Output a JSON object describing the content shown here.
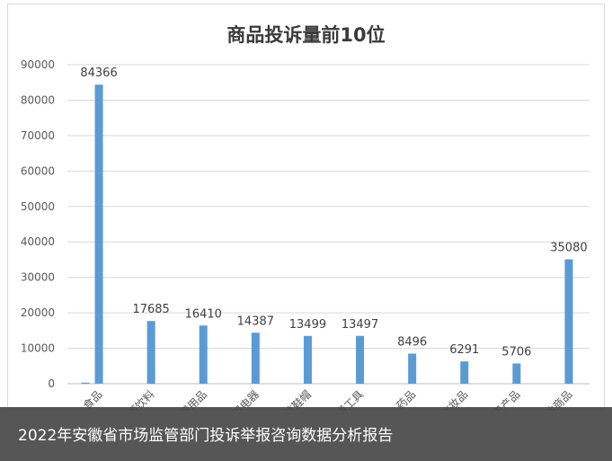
{
  "chart_data": {
    "type": "bar",
    "title": "商品投诉量前10位",
    "categories": [
      "食品",
      "烟酒饮料",
      "家居用品",
      "家用电器",
      "服装鞋帽",
      "交通工具",
      "药品",
      "化妆品",
      "通讯产品",
      "其他商品"
    ],
    "values": [
      84366,
      17685,
      16410,
      14387,
      13499,
      13497,
      8496,
      6291,
      5706,
      35080
    ],
    "secondary_values": [
      300,
      null,
      null,
      null,
      null,
      null,
      null,
      null,
      null,
      null
    ],
    "ylim": [
      0,
      90000
    ],
    "yticks": [
      0,
      10000,
      20000,
      30000,
      40000,
      50000,
      60000,
      70000,
      80000,
      90000
    ],
    "xlabel": "",
    "ylabel": "",
    "grid": true,
    "bar_color": "#5b9bd5",
    "secondary_bar_color": "#5b9bd5"
  },
  "caption": "2022年安徽省市场监管部门投诉举报咨询数据分析报告"
}
